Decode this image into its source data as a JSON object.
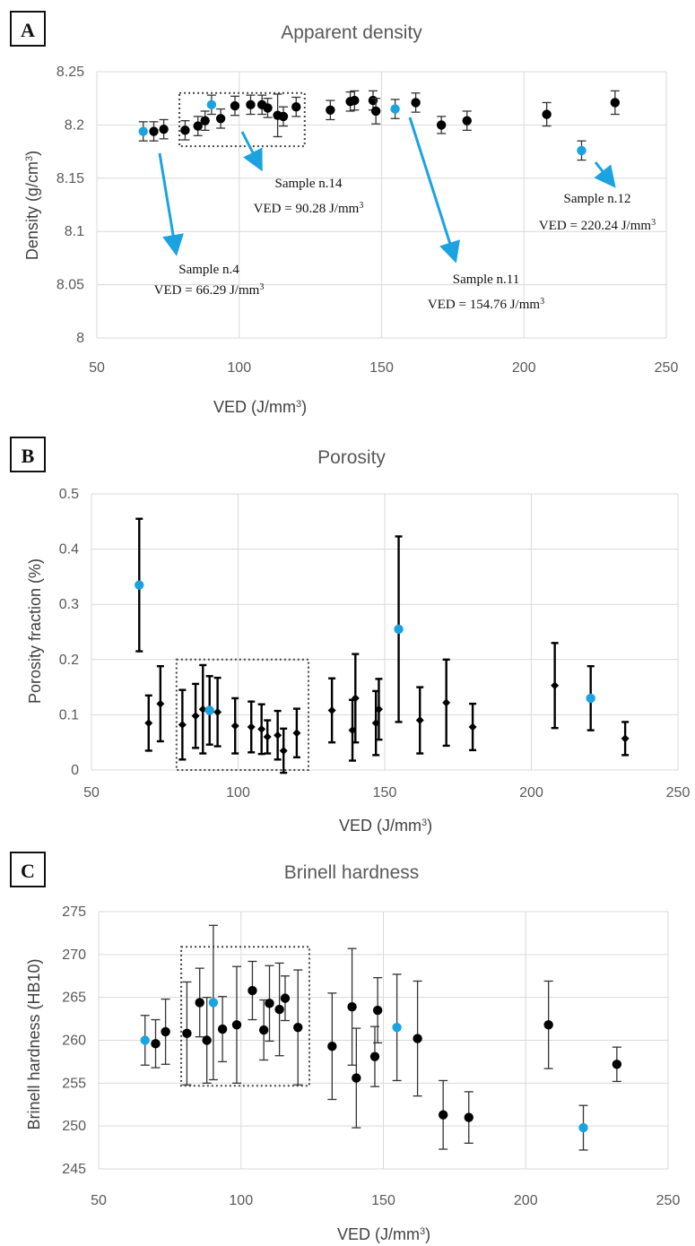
{
  "colors": {
    "black_point": "#000000",
    "highlight_point": "#1aa3e0",
    "grid": "#d9d9d9",
    "box": "#444444"
  },
  "chart_data": [
    {
      "type": "scatter",
      "panel_label": "A",
      "title": "Apparent density",
      "xlabel": "VED (J/mm",
      "xlabel_sup": "3",
      "xlabel_end": ")",
      "ylabel": "Density (g/cm",
      "ylabel_sup": "3",
      "ylabel_end": ")",
      "xlim": [
        50,
        250
      ],
      "ylim": [
        8.0,
        8.25
      ],
      "xticks": [
        "50",
        "100",
        "150",
        "200",
        "250"
      ],
      "yticks": [
        "8",
        "8.05",
        "8.1",
        "8.15",
        "8.2",
        "8.25"
      ],
      "grid": true,
      "dotted_box": {
        "x": [
          79,
          123
        ],
        "y": [
          8.18,
          8.23
        ]
      },
      "points": [
        {
          "x": 66.29,
          "y": 8.194,
          "err": 0.009,
          "hl": true
        },
        {
          "x": 70,
          "y": 8.194,
          "err": 0.009
        },
        {
          "x": 73.5,
          "y": 8.196,
          "err": 0.009
        },
        {
          "x": 81,
          "y": 8.195,
          "err": 0.009
        },
        {
          "x": 85.5,
          "y": 8.199,
          "err": 0.009
        },
        {
          "x": 88,
          "y": 8.204,
          "err": 0.009
        },
        {
          "x": 90.28,
          "y": 8.219,
          "err": 0.009,
          "hl": true
        },
        {
          "x": 93.5,
          "y": 8.206,
          "err": 0.009
        },
        {
          "x": 98.5,
          "y": 8.218,
          "err": 0.009
        },
        {
          "x": 104,
          "y": 8.219,
          "err": 0.009
        },
        {
          "x": 108,
          "y": 8.219,
          "err": 0.009
        },
        {
          "x": 110,
          "y": 8.216,
          "err": 0.009
        },
        {
          "x": 113.5,
          "y": 8.209,
          "err": 0.02
        },
        {
          "x": 115.5,
          "y": 8.208,
          "err": 0.009
        },
        {
          "x": 120,
          "y": 8.217,
          "err": 0.009
        },
        {
          "x": 132,
          "y": 8.214,
          "err": 0.009
        },
        {
          "x": 139,
          "y": 8.222,
          "err": 0.009
        },
        {
          "x": 140.5,
          "y": 8.223,
          "err": 0.009
        },
        {
          "x": 147,
          "y": 8.223,
          "err": 0.009
        },
        {
          "x": 148,
          "y": 8.213,
          "err": 0.012
        },
        {
          "x": 154.76,
          "y": 8.215,
          "err": 0.009,
          "hl": true
        },
        {
          "x": 162,
          "y": 8.221,
          "err": 0.009
        },
        {
          "x": 171,
          "y": 8.2,
          "err": 0.008
        },
        {
          "x": 180,
          "y": 8.204,
          "err": 0.009
        },
        {
          "x": 208,
          "y": 8.21,
          "err": 0.011
        },
        {
          "x": 220.24,
          "y": 8.176,
          "err": 0.009,
          "hl": true
        },
        {
          "x": 232,
          "y": 8.221,
          "err": 0.011
        }
      ],
      "annotations": [
        {
          "sample": "Sample n.4",
          "ved_label": "VED = 66.29 J/mm",
          "sup": "3"
        },
        {
          "sample": "Sample n.14",
          "ved_label": "VED = 90.28 J/mm",
          "sup": "3"
        },
        {
          "sample": "Sample n.11",
          "ved_label": "VED = 154.76 J/mm",
          "sup": "3"
        },
        {
          "sample": "Sample n.12",
          "ved_label": "VED = 220.24 J/mm",
          "sup": "3"
        }
      ]
    },
    {
      "type": "scatter",
      "panel_label": "B",
      "title": "Porosity",
      "xlabel": "VED (J/mm",
      "xlabel_sup": "3",
      "xlabel_end": ")",
      "ylabel": "Porosity fraction (%)",
      "xlim": [
        50,
        250
      ],
      "ylim": [
        0,
        0.5
      ],
      "xticks": [
        "50",
        "100",
        "150",
        "200",
        "250"
      ],
      "yticks": [
        "0",
        "0.1",
        "0.2",
        "0.3",
        "0.4",
        "0.5"
      ],
      "grid": true,
      "dotted_box": {
        "x": [
          79,
          124
        ],
        "y": [
          0.0,
          0.2
        ]
      },
      "points": [
        {
          "x": 66.29,
          "y": 0.335,
          "err": 0.12,
          "hl": true
        },
        {
          "x": 69.5,
          "y": 0.085,
          "err": 0.05
        },
        {
          "x": 73.5,
          "y": 0.12,
          "err": 0.068
        },
        {
          "x": 81,
          "y": 0.082,
          "err": 0.063
        },
        {
          "x": 85.5,
          "y": 0.098,
          "err": 0.058
        },
        {
          "x": 88,
          "y": 0.11,
          "err": 0.08
        },
        {
          "x": 90.28,
          "y": 0.108,
          "err": 0.062,
          "hl": true
        },
        {
          "x": 93,
          "y": 0.105,
          "err": 0.062
        },
        {
          "x": 99,
          "y": 0.08,
          "err": 0.05
        },
        {
          "x": 104.5,
          "y": 0.078,
          "err": 0.046
        },
        {
          "x": 108,
          "y": 0.074,
          "err": 0.045
        },
        {
          "x": 110,
          "y": 0.06,
          "err": 0.03
        },
        {
          "x": 113.5,
          "y": 0.063,
          "err": 0.044
        },
        {
          "x": 115.5,
          "y": 0.035,
          "err": 0.04
        },
        {
          "x": 120,
          "y": 0.067,
          "err": 0.044
        },
        {
          "x": 132,
          "y": 0.108,
          "err": 0.058
        },
        {
          "x": 139,
          "y": 0.072,
          "err": 0.055
        },
        {
          "x": 140,
          "y": 0.13,
          "err": 0.08
        },
        {
          "x": 147,
          "y": 0.085,
          "err": 0.058
        },
        {
          "x": 148,
          "y": 0.11,
          "err": 0.055
        },
        {
          "x": 154.76,
          "y": 0.255,
          "err": 0.168,
          "hl": true
        },
        {
          "x": 162,
          "y": 0.09,
          "err": 0.06
        },
        {
          "x": 171,
          "y": 0.122,
          "err": 0.078
        },
        {
          "x": 180,
          "y": 0.078,
          "err": 0.042
        },
        {
          "x": 208,
          "y": 0.153,
          "err": 0.077
        },
        {
          "x": 220.24,
          "y": 0.13,
          "err": 0.058,
          "hl": true
        },
        {
          "x": 232,
          "y": 0.057,
          "err": 0.03
        }
      ]
    },
    {
      "type": "scatter",
      "panel_label": "C",
      "title": "Brinell hardness",
      "xlabel": "VED (J/mm",
      "xlabel_sup": "3",
      "xlabel_end": ")",
      "ylabel": "Brinell hardness (HB10)",
      "xlim": [
        50,
        250
      ],
      "ylim": [
        245,
        275
      ],
      "xticks": [
        "50",
        "100",
        "150",
        "200",
        "250"
      ],
      "yticks": [
        "245",
        "250",
        "255",
        "260",
        "265",
        "270",
        "275"
      ],
      "grid": true,
      "dotted_box": {
        "x": [
          79,
          124
        ],
        "y": [
          254.7,
          270.9
        ]
      },
      "points": [
        {
          "x": 66.29,
          "y": 260.0,
          "err": 2.9,
          "hl": true
        },
        {
          "x": 70,
          "y": 259.6,
          "err": 2.8
        },
        {
          "x": 73.5,
          "y": 261.0,
          "err": 3.8
        },
        {
          "x": 81,
          "y": 260.8,
          "err": 6.0
        },
        {
          "x": 85.5,
          "y": 264.4,
          "err": 4.0
        },
        {
          "x": 88,
          "y": 260.0,
          "err": 5.0
        },
        {
          "x": 90.28,
          "y": 264.4,
          "err": 9.0,
          "hl": true
        },
        {
          "x": 93.5,
          "y": 261.3,
          "err": 3.8
        },
        {
          "x": 98.5,
          "y": 261.8,
          "err": 6.8
        },
        {
          "x": 104,
          "y": 265.8,
          "err": 3.4
        },
        {
          "x": 108,
          "y": 261.2,
          "err": 3.5
        },
        {
          "x": 110,
          "y": 264.3,
          "err": 4.4
        },
        {
          "x": 113.5,
          "y": 263.6,
          "err": 5.4
        },
        {
          "x": 115.5,
          "y": 264.9,
          "err": 2.6
        },
        {
          "x": 120,
          "y": 261.5,
          "err": 6.7
        },
        {
          "x": 132,
          "y": 259.3,
          "err": 6.2
        },
        {
          "x": 139,
          "y": 263.9,
          "err": 6.8
        },
        {
          "x": 140.5,
          "y": 255.6,
          "err": 5.8
        },
        {
          "x": 147,
          "y": 258.1,
          "err": 3.5
        },
        {
          "x": 148,
          "y": 263.5,
          "err": 3.8
        },
        {
          "x": 154.76,
          "y": 261.5,
          "err": 6.2,
          "hl": true
        },
        {
          "x": 162,
          "y": 260.2,
          "err": 6.7
        },
        {
          "x": 171,
          "y": 251.3,
          "err": 4.0
        },
        {
          "x": 180,
          "y": 251.0,
          "err": 3.0
        },
        {
          "x": 208,
          "y": 261.8,
          "err": 5.1
        },
        {
          "x": 220.24,
          "y": 249.8,
          "err": 2.6,
          "hl": true
        },
        {
          "x": 232,
          "y": 257.2,
          "err": 2.0
        }
      ]
    }
  ]
}
